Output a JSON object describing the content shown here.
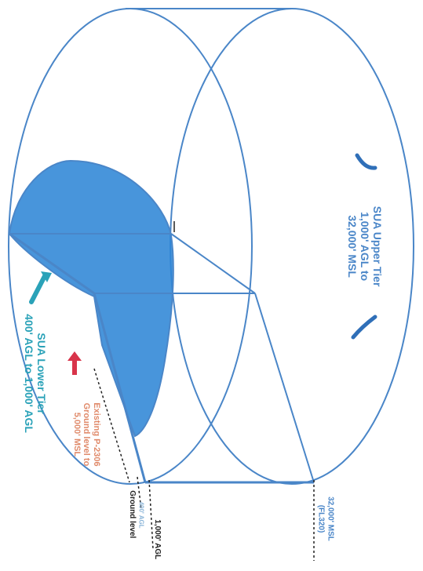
{
  "diagram": {
    "upper_tier": {
      "line1": "SUA Upper Tier",
      "line2": "1,000' AGL to",
      "line3": "32,000' MSL"
    },
    "lower_tier": {
      "line1": "SUA Lower Tier",
      "line2": "400' AGL to 1,000' AGL"
    },
    "existing": {
      "line1": "Existing P-2306",
      "line2": "Ground level to",
      "line3": "5,000' MSL"
    },
    "labels": {
      "ground_level": "Ground level",
      "agl_400": "400' AGL",
      "agl_1000": "1,000' AGL",
      "msl_32000_line1": "32,000' MSL",
      "msl_32000_line2": "(FL320)"
    },
    "colors": {
      "outline": "#4a86c8",
      "fill": "#2f86d6",
      "lower_arrow": "#2aa2b8",
      "existing_arrow": "#d8344a"
    }
  }
}
